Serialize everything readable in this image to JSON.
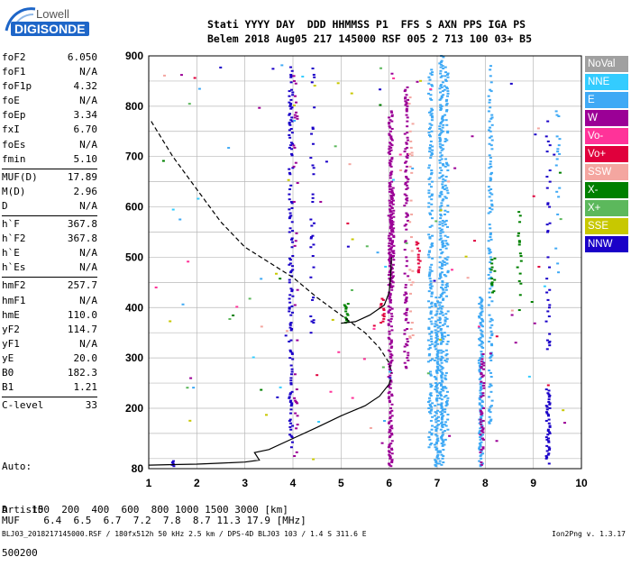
{
  "logo": {
    "line1": "Lowell",
    "line2": "DIGISONDE"
  },
  "header": {
    "row1": "Stati YYYY DAY  DDD HHMMSS P1  FFS S AXN PPS IGA PS",
    "row2": "Belem 2018 Aug05 217 145000 RSF 005 2 713 100 03+ B5"
  },
  "params": [
    [
      {
        "label": "foF2",
        "value": "6.050"
      },
      {
        "label": "foF1",
        "value": "N/A"
      },
      {
        "label": "foF1p",
        "value": "4.32"
      },
      {
        "label": "foE",
        "value": "N/A"
      },
      {
        "label": "foEp",
        "value": "3.34"
      },
      {
        "label": "fxI",
        "value": "6.70"
      },
      {
        "label": "foEs",
        "value": "N/A"
      },
      {
        "label": "fmin",
        "value": "5.10"
      }
    ],
    [
      {
        "label": "MUF(D)",
        "value": "17.89"
      },
      {
        "label": "M(D)",
        "value": "2.96"
      },
      {
        "label": "D",
        "value": "N/A"
      }
    ],
    [
      {
        "label": "h`F",
        "value": "367.8"
      },
      {
        "label": "h`F2",
        "value": "367.8"
      },
      {
        "label": "h`E",
        "value": "N/A"
      },
      {
        "label": "h`Es",
        "value": "N/A"
      }
    ],
    [
      {
        "label": "hmF2",
        "value": "257.7"
      },
      {
        "label": "hmF1",
        "value": "N/A"
      },
      {
        "label": "hmE",
        "value": "110.0"
      },
      {
        "label": "yF2",
        "value": "114.7"
      },
      {
        "label": "yF1",
        "value": "N/A"
      },
      {
        "label": "yE",
        "value": "20.0"
      },
      {
        "label": "B0",
        "value": "182.3"
      },
      {
        "label": "B1",
        "value": "1.21"
      }
    ],
    [
      {
        "label": "C-level",
        "value": "33"
      }
    ]
  ],
  "auto": {
    "line1": "Auto:",
    "line2": "Artist5",
    "line3": "500200"
  },
  "legend": [
    {
      "label": "NoVal",
      "color": "#a0a0a0"
    },
    {
      "label": "NNE",
      "color": "#33ccff"
    },
    {
      "label": "E",
      "color": "#3fa9f5"
    },
    {
      "label": "W",
      "color": "#9b0096"
    },
    {
      "label": "Vo-",
      "color": "#ff3399"
    },
    {
      "label": "Vo+",
      "color": "#e0003c"
    },
    {
      "label": "SSW",
      "color": "#f4a6a0"
    },
    {
      "label": "X-",
      "color": "#008000"
    },
    {
      "label": "X+",
      "color": "#5cb85c"
    },
    {
      "label": "SSE",
      "color": "#c8c800"
    },
    {
      "label": "NNW",
      "color": "#1a00c8"
    }
  ],
  "table": {
    "row1_label": "D",
    "row1": [
      "100",
      "200",
      "400",
      "600",
      "800",
      "1000",
      "1500",
      "3000"
    ],
    "row1_unit": "[km]",
    "row2_label": "MUF",
    "row2": [
      "6.4",
      "6.5",
      "6.7",
      "7.2",
      "7.8",
      "8.7",
      "11.3",
      "17.9"
    ],
    "row2_unit": "[MHz]"
  },
  "footer": {
    "left": "BLJ03_2018217145000.RSF / 180fx512h 50 kHz 2.5 km / DPS-4D BLJ03 103 / 1.4 S 311.6 E",
    "right": "Ion2Png v. 1.3.17"
  },
  "chart_data": {
    "type": "scatter",
    "xlim": [
      1,
      10
    ],
    "ylim": [
      80,
      900
    ],
    "xticks": [
      1,
      2,
      3,
      4,
      5,
      6,
      7,
      8,
      9,
      10
    ],
    "yticks": [
      80,
      200,
      300,
      400,
      500,
      600,
      700,
      800,
      900
    ],
    "grid": true,
    "traces": [
      {
        "style": "solid",
        "name": "trace-profile",
        "points": [
          [
            1,
            87
          ],
          [
            1.5,
            88
          ],
          [
            2.0,
            89
          ],
          [
            2.5,
            91
          ],
          [
            3.0,
            93
          ],
          [
            3.3,
            97
          ],
          [
            3.2,
            112
          ],
          [
            3.5,
            118
          ],
          [
            4.0,
            140
          ],
          [
            4.5,
            162
          ],
          [
            5.0,
            185
          ],
          [
            5.5,
            205
          ],
          [
            5.8,
            224
          ],
          [
            6.0,
            248
          ],
          [
            6.03,
            257.7
          ]
        ]
      },
      {
        "style": "solid",
        "name": "trace-echo",
        "points": [
          [
            5.0,
            369
          ],
          [
            5.3,
            372
          ],
          [
            5.6,
            385
          ],
          [
            5.9,
            405
          ],
          [
            6.0,
            430
          ],
          [
            6.03,
            462
          ],
          [
            6.05,
            500
          ]
        ]
      },
      {
        "style": "dashed",
        "name": "trace-extrapolated",
        "points": [
          [
            1.05,
            770
          ],
          [
            1.5,
            700
          ],
          [
            2.0,
            635
          ],
          [
            2.5,
            570
          ],
          [
            3.0,
            520
          ],
          [
            3.5,
            490
          ],
          [
            4.0,
            460
          ],
          [
            4.5,
            420
          ],
          [
            5.0,
            385
          ],
          [
            5.5,
            350
          ],
          [
            5.8,
            320
          ],
          [
            6.0,
            290
          ],
          [
            6.05,
            270
          ]
        ]
      }
    ],
    "stacks": [
      {
        "x": 3.95,
        "y0": 120,
        "y1": 890,
        "c": "#1a00c8",
        "d": 0.45
      },
      {
        "x": 4.05,
        "y0": 85,
        "y1": 860,
        "c": "#9b0096",
        "d": 0.1
      },
      {
        "x": 4.4,
        "y0": 350,
        "y1": 890,
        "c": "#1a00c8",
        "d": 0.18
      },
      {
        "x": 6.02,
        "y0": 85,
        "y1": 790,
        "c": "#9b0096",
        "d": 0.75
      },
      {
        "x": 6.05,
        "y0": 440,
        "y1": 640,
        "c": "#9b0096",
        "d": 1.0
      },
      {
        "x": 6.35,
        "y0": 280,
        "y1": 840,
        "c": "#9b0096",
        "d": 0.45
      },
      {
        "x": 6.85,
        "y0": 120,
        "y1": 880,
        "c": "#3fa9f5",
        "d": 0.55
      },
      {
        "x": 6.98,
        "y0": 85,
        "y1": 420,
        "c": "#3fa9f5",
        "d": 0.85
      },
      {
        "x": 7.08,
        "y0": 85,
        "y1": 900,
        "c": "#3fa9f5",
        "d": 0.7
      },
      {
        "x": 7.18,
        "y0": 120,
        "y1": 880,
        "c": "#3fa9f5",
        "d": 0.4
      },
      {
        "x": 7.9,
        "y0": 85,
        "y1": 420,
        "c": "#3fa9f5",
        "d": 0.85
      },
      {
        "x": 7.93,
        "y0": 85,
        "y1": 310,
        "c": "#9b0096",
        "d": 0.5
      },
      {
        "x": 8.1,
        "y0": 170,
        "y1": 880,
        "c": "#3fa9f5",
        "d": 0.35
      },
      {
        "x": 9.3,
        "y0": 85,
        "y1": 240,
        "c": "#1a00c8",
        "d": 0.7
      },
      {
        "x": 9.3,
        "y0": 300,
        "y1": 790,
        "c": "#1a00c8",
        "d": 0.12
      },
      {
        "x": 8.7,
        "y0": 390,
        "y1": 590,
        "c": "#008000",
        "d": 0.25
      },
      {
        "x": 8.15,
        "y0": 430,
        "y1": 500,
        "c": "#008000",
        "d": 0.5
      },
      {
        "x": 6.6,
        "y0": 470,
        "y1": 540,
        "c": "#e0003c",
        "d": 0.5
      },
      {
        "x": 5.85,
        "y0": 370,
        "y1": 420,
        "c": "#e0003c",
        "d": 0.6
      },
      {
        "x": 5.1,
        "y0": 365,
        "y1": 410,
        "c": "#008000",
        "d": 0.5
      },
      {
        "x": 1.5,
        "y0": 85,
        "y1": 95,
        "c": "#1a00c8",
        "d": 1.0
      },
      {
        "x": 6.45,
        "y0": 300,
        "y1": 880,
        "c": "#f4a6a0",
        "d": 0.12
      },
      {
        "x": 9.5,
        "y0": 450,
        "y1": 800,
        "c": "#3fa9f5",
        "d": 0.1
      }
    ]
  }
}
